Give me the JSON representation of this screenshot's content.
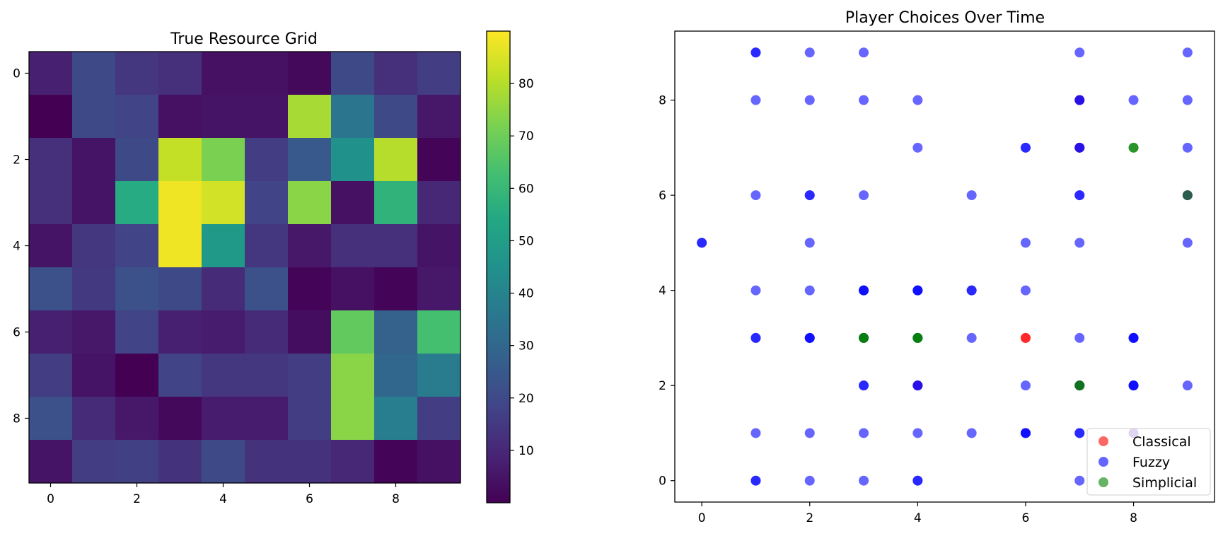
{
  "chart_data": [
    {
      "type": "heatmap",
      "title": "True Resource Grid",
      "x_ticks": [
        "0",
        "2",
        "4",
        "6",
        "8"
      ],
      "y_ticks": [
        "0",
        "2",
        "4",
        "6",
        "8"
      ],
      "xlim": [
        -0.5,
        9.5
      ],
      "ylim": [
        9.5,
        -0.5
      ],
      "colormap": "viridis",
      "vmin": 0,
      "vmax": 90,
      "colorbar_ticks": [
        "10",
        "20",
        "30",
        "40",
        "50",
        "60",
        "70",
        "80"
      ],
      "values": [
        [
          8,
          20,
          14,
          12,
          4,
          4,
          2,
          20,
          12,
          16
        ],
        [
          0,
          20,
          18,
          4,
          5,
          5,
          78,
          35,
          20,
          6
        ],
        [
          12,
          5,
          20,
          82,
          72,
          16,
          25,
          45,
          80,
          1
        ],
        [
          12,
          5,
          55,
          88,
          84,
          18,
          74,
          4,
          58,
          10
        ],
        [
          5,
          14,
          18,
          88,
          48,
          14,
          6,
          12,
          12,
          5
        ],
        [
          22,
          15,
          22,
          20,
          11,
          22,
          1,
          4,
          1,
          6
        ],
        [
          8,
          6,
          18,
          8,
          7,
          11,
          3,
          68,
          28,
          63
        ],
        [
          16,
          5,
          0,
          18,
          14,
          14,
          16,
          74,
          30,
          37
        ],
        [
          22,
          11,
          6,
          2,
          7,
          7,
          16,
          74,
          38,
          16
        ],
        [
          5,
          16,
          17,
          13,
          20,
          13,
          13,
          10,
          1,
          4
        ]
      ]
    },
    {
      "type": "scatter",
      "title": "Player Choices Over Time",
      "x_ticks": [
        "0",
        "2",
        "4",
        "6",
        "8"
      ],
      "y_ticks": [
        "0",
        "2",
        "4",
        "6",
        "8"
      ],
      "xlim": [
        -0.5,
        9.5
      ],
      "ylim": [
        -0.45,
        9.45
      ],
      "legend_position": "lower-right",
      "series": [
        {
          "name": "Classical",
          "color": "#ff0000",
          "alpha": 0.6,
          "points": [
            [
              6,
              3
            ],
            [
              6,
              3
            ],
            [
              8,
              1
            ],
            [
              7,
              2
            ],
            [
              9,
              6
            ],
            [
              7,
              7
            ],
            [
              7,
              8
            ],
            [
              4,
              2
            ]
          ]
        },
        {
          "name": "Fuzzy",
          "color": "#0000ff",
          "alpha": 0.6,
          "points": [
            [
              1,
              9
            ],
            [
              1,
              9
            ],
            [
              2,
              9
            ],
            [
              3,
              9
            ],
            [
              7,
              9
            ],
            [
              9,
              9
            ],
            [
              1,
              8
            ],
            [
              2,
              8
            ],
            [
              3,
              8
            ],
            [
              4,
              8
            ],
            [
              7,
              8
            ],
            [
              7,
              8
            ],
            [
              8,
              8
            ],
            [
              9,
              8
            ],
            [
              4,
              7
            ],
            [
              6,
              7
            ],
            [
              6,
              7
            ],
            [
              7,
              7
            ],
            [
              7,
              7
            ],
            [
              9,
              7
            ],
            [
              1,
              6
            ],
            [
              2,
              6
            ],
            [
              2,
              6
            ],
            [
              3,
              6
            ],
            [
              5,
              6
            ],
            [
              7,
              6
            ],
            [
              7,
              6
            ],
            [
              9,
              6
            ],
            [
              0,
              5
            ],
            [
              0,
              5
            ],
            [
              2,
              5
            ],
            [
              6,
              5
            ],
            [
              7,
              5
            ],
            [
              9,
              5
            ],
            [
              1,
              4
            ],
            [
              2,
              4
            ],
            [
              3,
              4
            ],
            [
              3,
              4
            ],
            [
              3,
              4
            ],
            [
              4,
              4
            ],
            [
              4,
              4
            ],
            [
              4,
              4
            ],
            [
              5,
              4
            ],
            [
              5,
              4
            ],
            [
              6,
              4
            ],
            [
              1,
              3
            ],
            [
              1,
              3
            ],
            [
              2,
              3
            ],
            [
              2,
              3
            ],
            [
              2,
              3
            ],
            [
              3,
              3
            ],
            [
              4,
              3
            ],
            [
              5,
              3
            ],
            [
              7,
              3
            ],
            [
              8,
              3
            ],
            [
              8,
              3
            ],
            [
              8,
              3
            ],
            [
              3,
              2
            ],
            [
              3,
              2
            ],
            [
              4,
              2
            ],
            [
              4,
              2
            ],
            [
              6,
              2
            ],
            [
              7,
              2
            ],
            [
              8,
              2
            ],
            [
              8,
              2
            ],
            [
              8,
              2
            ],
            [
              9,
              2
            ],
            [
              1,
              1
            ],
            [
              2,
              1
            ],
            [
              3,
              1
            ],
            [
              4,
              1
            ],
            [
              5,
              1
            ],
            [
              6,
              1
            ],
            [
              6,
              1
            ],
            [
              6,
              1
            ],
            [
              7,
              1
            ],
            [
              7,
              1
            ],
            [
              8,
              1
            ],
            [
              1,
              0
            ],
            [
              1,
              0
            ],
            [
              2,
              0
            ],
            [
              3,
              0
            ],
            [
              4,
              0
            ],
            [
              4,
              0
            ],
            [
              7,
              0
            ]
          ]
        },
        {
          "name": "Simplicial",
          "color": "#008000",
          "alpha": 0.6,
          "points": [
            [
              8,
              7
            ],
            [
              8,
              7
            ],
            [
              3,
              3
            ],
            [
              3,
              3
            ],
            [
              3,
              3
            ],
            [
              4,
              3
            ],
            [
              4,
              3
            ],
            [
              4,
              3
            ],
            [
              7,
              2
            ],
            [
              7,
              2
            ],
            [
              9,
              6
            ]
          ]
        }
      ]
    }
  ]
}
